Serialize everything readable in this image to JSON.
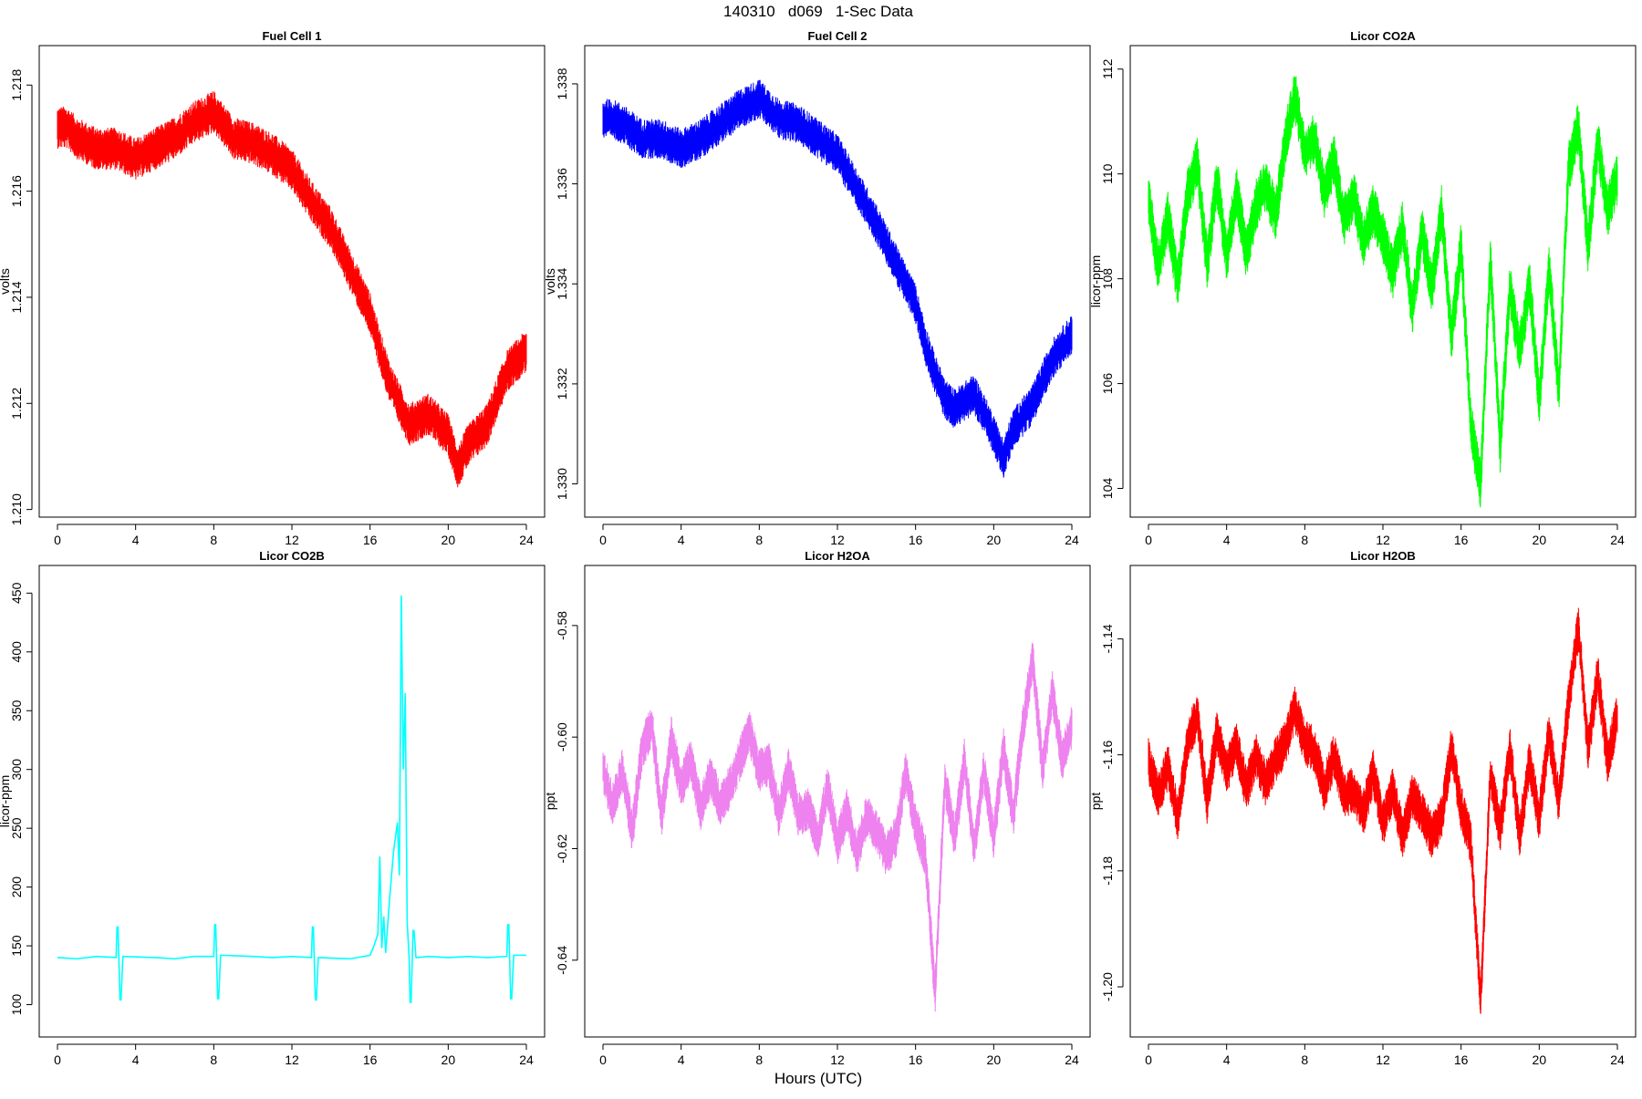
{
  "page_title": "140310   d069   1-Sec Data",
  "x_axis_title": "Hours (UTC)",
  "chart_data": [
    {
      "type": "line",
      "title": "Fuel Cell 1",
      "ylabel": "volts",
      "color": "#ff0000",
      "xlim": [
        0,
        24
      ],
      "ylim": [
        1.2102,
        1.2184
      ],
      "xticks": [
        0,
        4,
        8,
        12,
        16,
        20,
        24
      ],
      "xtick_labels": [
        "0",
        "4",
        "8",
        "12",
        "16",
        "20",
        "24"
      ],
      "yticks": [
        1.21,
        1.212,
        1.214,
        1.216,
        1.218
      ],
      "ytick_labels": [
        "1.210",
        "1.212",
        "1.214",
        "1.216",
        "1.218"
      ],
      "series": [
        {
          "x": [
            0,
            0.5,
            1,
            2,
            3,
            4,
            5,
            6,
            7,
            7.5,
            8,
            9,
            10,
            11,
            12,
            13,
            14,
            15,
            16,
            16.5,
            17,
            17.5,
            18,
            19,
            20,
            20.5,
            21,
            22,
            23,
            24
          ],
          "y": [
            1.2172,
            1.2172,
            1.217,
            1.2168,
            1.2168,
            1.2166,
            1.2168,
            1.217,
            1.2173,
            1.2174,
            1.2175,
            1.217,
            1.2169,
            1.2167,
            1.2164,
            1.2158,
            1.2153,
            1.2145,
            1.2137,
            1.213,
            1.2124,
            1.212,
            1.2116,
            1.2118,
            1.2114,
            1.2108,
            1.2112,
            1.2116,
            1.2126,
            1.213
          ],
          "spread": 0.0004
        }
      ]
    },
    {
      "type": "line",
      "title": "Fuel Cell 2",
      "ylabel": "volts",
      "color": "#0000ff",
      "xlim": [
        0,
        24
      ],
      "ylim": [
        1.3297,
        1.3384
      ],
      "xticks": [
        0,
        4,
        8,
        12,
        16,
        20,
        24
      ],
      "xtick_labels": [
        "0",
        "4",
        "8",
        "12",
        "16",
        "20",
        "24"
      ],
      "yticks": [
        1.33,
        1.332,
        1.334,
        1.336,
        1.338
      ],
      "ytick_labels": [
        "1.330",
        "1.332",
        "1.334",
        "1.336",
        "1.338"
      ],
      "series": [
        {
          "x": [
            0,
            0.5,
            1,
            2,
            3,
            4,
            5,
            6,
            7,
            7.5,
            8,
            9,
            10,
            11,
            12,
            13,
            14,
            15,
            16,
            16.5,
            17,
            17.5,
            18,
            19,
            20,
            20.5,
            21,
            22,
            23,
            24
          ],
          "y": [
            1.3373,
            1.3373,
            1.3372,
            1.3369,
            1.3369,
            1.3367,
            1.3369,
            1.3372,
            1.3375,
            1.3376,
            1.3377,
            1.3373,
            1.3372,
            1.3369,
            1.3366,
            1.3359,
            1.3352,
            1.3344,
            1.3336,
            1.3328,
            1.3322,
            1.3317,
            1.3315,
            1.3318,
            1.331,
            1.3305,
            1.3311,
            1.3316,
            1.3325,
            1.333
          ],
          "spread": 0.0004
        }
      ]
    },
    {
      "type": "line",
      "title": "Licor CO2A",
      "ylabel": "licor-ppm",
      "color": "#00ff00",
      "xlim": [
        0,
        24
      ],
      "ylim": [
        103.8,
        112.1
      ],
      "xticks": [
        0,
        4,
        8,
        12,
        16,
        20,
        24
      ],
      "xtick_labels": [
        "0",
        "4",
        "8",
        "12",
        "16",
        "20",
        "24"
      ],
      "yticks": [
        104,
        106,
        108,
        110,
        112
      ],
      "ytick_labels": [
        "104",
        "106",
        "108",
        "110",
        "112"
      ],
      "series": [
        {
          "x": [
            0,
            0.5,
            1,
            1.5,
            2,
            2.5,
            3,
            3.5,
            4,
            4.5,
            5,
            5.5,
            6,
            6.5,
            7,
            7.5,
            8,
            8.5,
            9,
            9.5,
            10,
            10.5,
            11,
            11.5,
            12,
            12.5,
            13,
            13.5,
            14,
            14.5,
            15,
            15.5,
            16,
            16.5,
            17,
            17.5,
            18,
            18.5,
            19,
            19.5,
            20,
            20.5,
            21,
            21.5,
            22,
            22.5,
            23,
            23.5,
            24
          ],
          "y": [
            109.5,
            108.2,
            109.2,
            107.9,
            109.6,
            110.2,
            108.3,
            109.9,
            108.4,
            109.7,
            108.5,
            109.4,
            109.8,
            109.2,
            110.6,
            111.5,
            110.4,
            110.7,
            109.6,
            110.3,
            109.1,
            109.6,
            108.7,
            109.3,
            108.8,
            108.1,
            109.0,
            107.4,
            108.9,
            107.8,
            109.3,
            106.9,
            108.6,
            105.2,
            104.1,
            108.4,
            104.8,
            107.8,
            106.6,
            107.9,
            105.7,
            108.2,
            105.9,
            110.1,
            110.9,
            108.6,
            110.6,
            109.3,
            109.9
          ],
          "spread": 0.5
        }
      ]
    },
    {
      "type": "line",
      "title": "Licor CO2B",
      "ylabel": "licor-ppm",
      "color": "#00ffff",
      "xlim": [
        0,
        24
      ],
      "ylim": [
        88,
        458
      ],
      "xticks": [
        0,
        4,
        8,
        12,
        16,
        20,
        24
      ],
      "xtick_labels": [
        "0",
        "4",
        "8",
        "12",
        "16",
        "20",
        "24"
      ],
      "yticks": [
        100,
        150,
        200,
        250,
        300,
        350,
        400,
        450
      ],
      "ytick_labels": [
        "100",
        "150",
        "200",
        "250",
        "300",
        "350",
        "400",
        "450"
      ],
      "series": [
        {
          "x": [
            0,
            1,
            2,
            3,
            3.05,
            3.1,
            3.2,
            3.25,
            3.35,
            3.4,
            5,
            6,
            7,
            8,
            8.05,
            8.1,
            8.2,
            8.25,
            8.35,
            8.4,
            10,
            11,
            12,
            13,
            13.05,
            13.1,
            13.2,
            13.25,
            13.35,
            13.4,
            15,
            16,
            16.2,
            16.4,
            16.5,
            16.6,
            16.7,
            16.8,
            17,
            17.2,
            17.4,
            17.5,
            17.6,
            17.7,
            17.8,
            17.9,
            18,
            18.05,
            18.1,
            18.2,
            18.25,
            18.35,
            18.4,
            19,
            20,
            21,
            22,
            23,
            23.05,
            23.1,
            23.2,
            23.25,
            23.35,
            23.4,
            24
          ],
          "y": [
            140,
            139,
            141,
            140,
            166,
            166,
            104,
            104,
            141,
            141,
            140,
            139,
            141,
            141,
            168,
            168,
            105,
            105,
            142,
            142,
            141,
            140,
            141,
            140,
            166,
            166,
            104,
            104,
            140,
            140,
            139,
            142,
            150,
            160,
            226,
            148,
            175,
            144,
            190,
            230,
            255,
            210,
            448,
            300,
            365,
            170,
            140,
            102,
            102,
            163,
            163,
            140,
            140,
            141,
            140,
            141,
            140,
            141,
            168,
            168,
            105,
            105,
            142,
            142,
            142
          ],
          "spread": 0
        }
      ]
    },
    {
      "type": "line",
      "title": "Licor H2OA",
      "ylabel": "ppt",
      "color": "#ee82ee",
      "xlim": [
        0,
        24
      ],
      "ylim": [
        -0.6505,
        -0.5725
      ],
      "xticks": [
        0,
        4,
        8,
        12,
        16,
        20,
        24
      ],
      "xtick_labels": [
        "0",
        "4",
        "8",
        "12",
        "16",
        "20",
        "24"
      ],
      "yticks": [
        -0.64,
        -0.62,
        -0.6,
        -0.58
      ],
      "ytick_labels": [
        "-0.64",
        "-0.62",
        "-0.60",
        "-0.58"
      ],
      "series": [
        {
          "x": [
            0,
            0.5,
            1,
            1.5,
            2,
            2.5,
            3,
            3.5,
            4,
            4.5,
            5,
            5.5,
            6,
            6.5,
            7,
            7.5,
            8,
            8.5,
            9,
            9.5,
            10,
            10.5,
            11,
            11.5,
            12,
            12.5,
            13,
            13.5,
            14,
            14.5,
            15,
            15.5,
            16,
            16.5,
            17,
            17.5,
            18,
            18.5,
            19,
            19.5,
            20,
            20.5,
            21,
            21.5,
            22,
            22.5,
            23,
            23.5,
            24
          ],
          "y": [
            -0.606,
            -0.612,
            -0.606,
            -0.617,
            -0.602,
            -0.598,
            -0.614,
            -0.6,
            -0.609,
            -0.604,
            -0.613,
            -0.607,
            -0.612,
            -0.609,
            -0.604,
            -0.599,
            -0.606,
            -0.605,
            -0.614,
            -0.606,
            -0.614,
            -0.613,
            -0.618,
            -0.609,
            -0.619,
            -0.613,
            -0.621,
            -0.614,
            -0.617,
            -0.621,
            -0.618,
            -0.606,
            -0.616,
            -0.621,
            -0.646,
            -0.608,
            -0.618,
            -0.604,
            -0.62,
            -0.606,
            -0.618,
            -0.602,
            -0.614,
            -0.598,
            -0.586,
            -0.606,
            -0.592,
            -0.604,
            -0.598
          ],
          "spread": 0.004
        }
      ]
    },
    {
      "type": "line",
      "title": "Licor H2OB",
      "ylabel": "ppt",
      "color": "#ff0000",
      "xlim": [
        0,
        24
      ],
      "ylim": [
        -1.2055,
        -1.1305
      ],
      "xticks": [
        0,
        4,
        8,
        12,
        16,
        20,
        24
      ],
      "xtick_labels": [
        "0",
        "4",
        "8",
        "12",
        "16",
        "20",
        "24"
      ],
      "yticks": [
        -1.2,
        -1.18,
        -1.16,
        -1.14
      ],
      "ytick_labels": [
        "-1.20",
        "-1.18",
        "-1.16",
        "-1.14"
      ],
      "series": [
        {
          "x": [
            0,
            0.5,
            1,
            1.5,
            2,
            2.5,
            3,
            3.5,
            4,
            4.5,
            5,
            5.5,
            6,
            6.5,
            7,
            7.5,
            8,
            8.5,
            9,
            9.5,
            10,
            10.5,
            11,
            11.5,
            12,
            12.5,
            13,
            13.5,
            14,
            14.5,
            15,
            15.5,
            16,
            16.5,
            17,
            17.5,
            18,
            18.5,
            19,
            19.5,
            20,
            20.5,
            21,
            21.5,
            22,
            22.5,
            23,
            23.5,
            24
          ],
          "y": [
            -1.161,
            -1.167,
            -1.162,
            -1.171,
            -1.158,
            -1.153,
            -1.168,
            -1.156,
            -1.163,
            -1.158,
            -1.166,
            -1.16,
            -1.165,
            -1.161,
            -1.158,
            -1.152,
            -1.158,
            -1.159,
            -1.166,
            -1.16,
            -1.167,
            -1.166,
            -1.17,
            -1.163,
            -1.172,
            -1.166,
            -1.174,
            -1.167,
            -1.17,
            -1.174,
            -1.171,
            -1.159,
            -1.169,
            -1.175,
            -1.203,
            -1.163,
            -1.173,
            -1.159,
            -1.174,
            -1.161,
            -1.171,
            -1.156,
            -1.168,
            -1.151,
            -1.138,
            -1.159,
            -1.146,
            -1.161,
            -1.153
          ],
          "spread": 0.004
        }
      ]
    }
  ]
}
